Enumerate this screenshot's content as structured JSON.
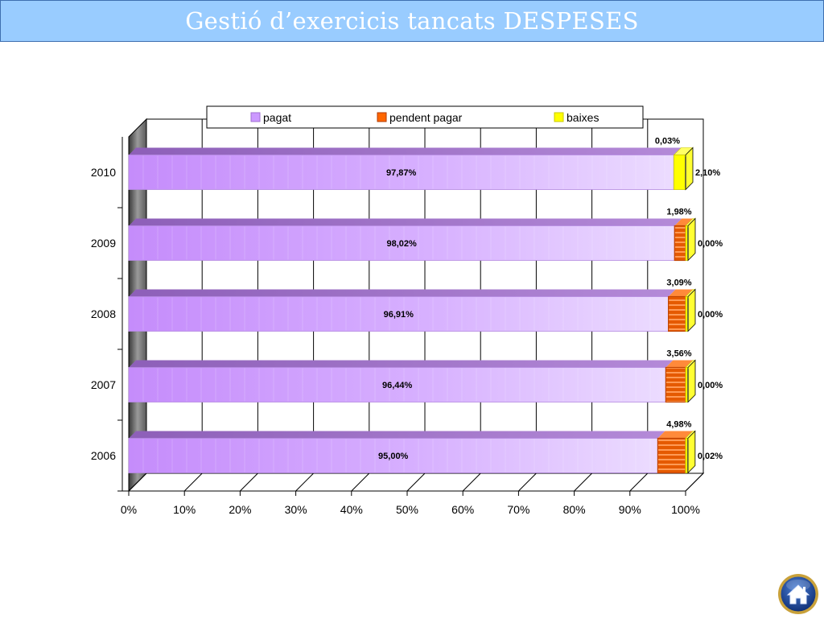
{
  "title": "Gestió d’exercicis tancats DESPESES",
  "home_icon": "home-icon",
  "colors": {
    "pagat": "#cc99ff",
    "pendent": "#ff6600",
    "baixes": "#ffff00",
    "title_bg": "#99ccff"
  },
  "chart_data": {
    "type": "bar",
    "orientation": "horizontal",
    "stacked": "percent",
    "categories": [
      "2006",
      "2007",
      "2008",
      "2009",
      "2010"
    ],
    "series": [
      {
        "name": "pagat",
        "values": [
          95.0,
          96.44,
          96.91,
          98.02,
          97.87
        ],
        "labels": [
          "95,00%",
          "96,44%",
          "96,91%",
          "98,02%",
          "97,87%"
        ]
      },
      {
        "name": "pendent pagar",
        "values": [
          4.98,
          3.56,
          3.09,
          1.98,
          0.03
        ],
        "labels": [
          "4,98%",
          "3,56%",
          "3,09%",
          "1,98%",
          "0,03%"
        ]
      },
      {
        "name": "baixes",
        "values": [
          0.02,
          0.0,
          0.0,
          0.0,
          2.1
        ],
        "labels": [
          "0,02%",
          "0,00%",
          "0,00%",
          "0,00%",
          "2,10%"
        ]
      }
    ],
    "xlim": [
      0,
      100
    ],
    "xticks": [
      "0%",
      "10%",
      "20%",
      "30%",
      "40%",
      "50%",
      "60%",
      "70%",
      "80%",
      "90%",
      "100%"
    ],
    "grid": true,
    "legend_position": "top"
  }
}
